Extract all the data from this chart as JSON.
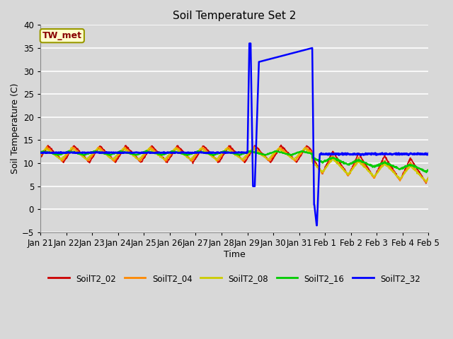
{
  "title": "Soil Temperature Set 2",
  "xlabel": "Time",
  "ylabel": "Soil Temperature (C)",
  "ylim": [
    -5,
    40
  ],
  "xlim": [
    0,
    15
  ],
  "xtick_labels": [
    "Jan 21",
    "Jan 22",
    "Jan 23",
    "Jan 24",
    "Jan 25",
    "Jan 26",
    "Jan 27",
    "Jan 28",
    "Jan 29",
    "Jan 30",
    "Jan 31",
    "Feb 1",
    "Feb 2",
    "Feb 3",
    "Feb 4",
    "Feb 5"
  ],
  "background_color": "#d8d8d8",
  "plot_bg_color": "#d8d8d8",
  "grid_color": "#ffffff",
  "annotation_text": "TW_met",
  "annotation_bg": "#ffffcc",
  "annotation_border": "#999900",
  "annotation_text_color": "#880000",
  "legend_entries": [
    "SoilT2_02",
    "SoilT2_04",
    "SoilT2_08",
    "SoilT2_16",
    "SoilT2_32"
  ],
  "line_colors": [
    "#cc0000",
    "#ff8800",
    "#cccc00",
    "#00cc00",
    "#0000ff"
  ],
  "line_widths": [
    1.2,
    1.2,
    1.2,
    1.5,
    1.8
  ]
}
